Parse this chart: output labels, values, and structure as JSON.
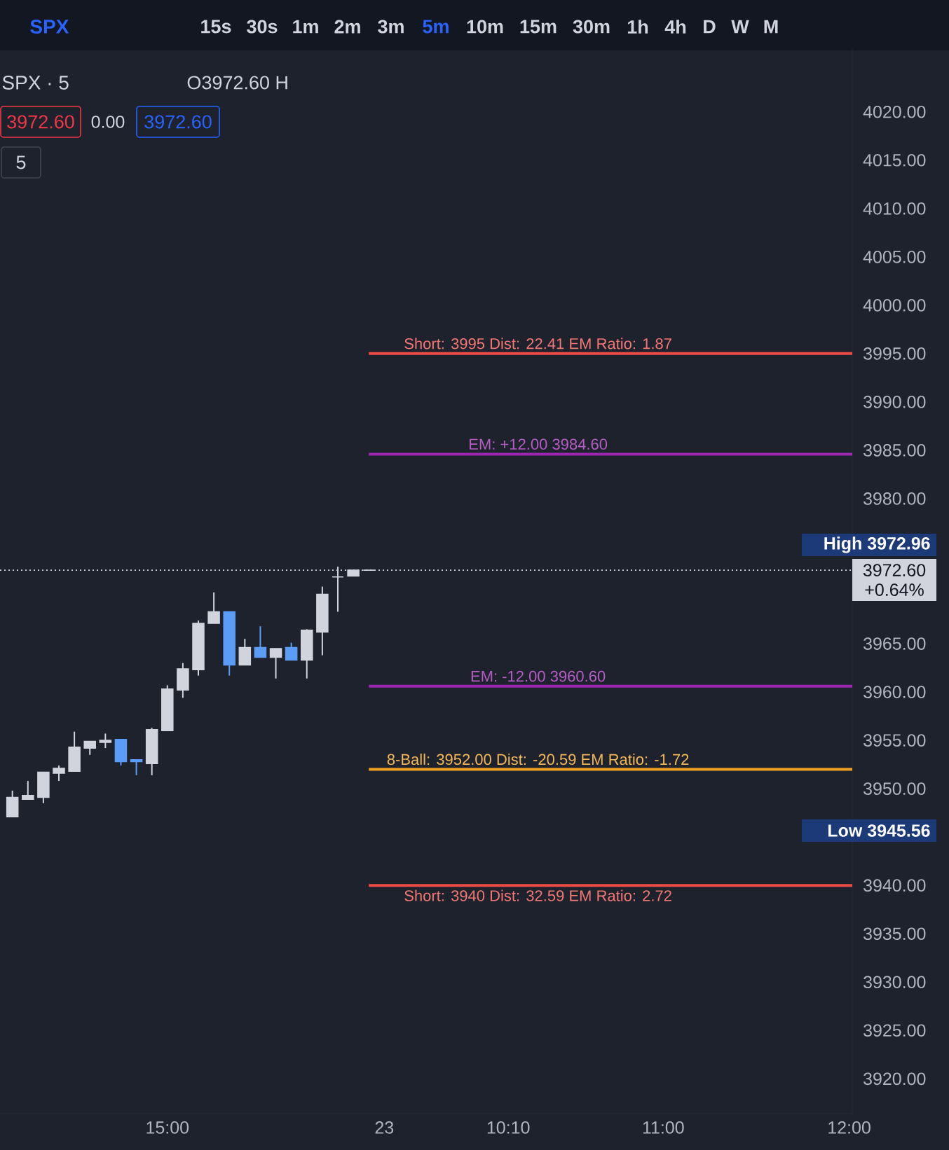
{
  "chart_data": {
    "type": "candlestick",
    "title": "SPX · 5",
    "categories": [
      null,
      null,
      null,
      null,
      null,
      null,
      null,
      null,
      null,
      null,
      "15:00",
      null,
      null,
      null,
      null,
      null,
      null,
      null,
      null,
      null,
      null,
      null,
      null,
      null,
      "23",
      null,
      null,
      null,
      null,
      null,
      null,
      null,
      "10:10",
      null,
      null,
      null,
      null,
      null,
      null,
      null,
      null,
      null,
      "11:00",
      null,
      null,
      null,
      null,
      null,
      null,
      null,
      null,
      null,
      null,
      null,
      "12:00"
    ],
    "ohlc": [
      [
        3947.1,
        3949.8,
        3947.1,
        3949.1
      ],
      [
        3948.9,
        3950.8,
        3948.9,
        3949.3
      ],
      [
        3949.1,
        3951.7,
        3948.5,
        3951.7
      ],
      [
        3951.6,
        3952.4,
        3950.8,
        3952.1
      ],
      [
        3951.8,
        3955.9,
        3951.8,
        3954.3
      ],
      [
        3954.2,
        3954.9,
        3953.5,
        3954.9
      ],
      [
        3954.8,
        3955.7,
        3954.2,
        3955.0
      ],
      [
        3955.1,
        3955.1,
        3952.4,
        3952.8
      ],
      [
        3953.0,
        3953.0,
        3951.4,
        3952.8
      ],
      [
        3952.6,
        3956.3,
        3951.4,
        3956.1
      ],
      [
        3956.0,
        3960.7,
        3956.0,
        3960.3
      ],
      [
        3960.2,
        3963.0,
        3959.4,
        3962.4
      ],
      [
        3962.3,
        3967.4,
        3961.7,
        3967.1
      ],
      [
        3967.1,
        3970.3,
        3967.1,
        3968.3
      ],
      [
        3968.3,
        3968.3,
        3961.7,
        3962.8
      ],
      [
        3962.8,
        3965.5,
        3962.8,
        3964.6
      ],
      [
        3964.6,
        3966.8,
        3963.6,
        3963.6
      ],
      [
        3963.6,
        3964.5,
        3961.4,
        3964.5
      ],
      [
        3964.6,
        3965.1,
        3963.3,
        3963.3
      ],
      [
        3963.3,
        3966.5,
        3961.4,
        3966.4
      ],
      [
        3966.2,
        3970.9,
        3963.8,
        3970.1
      ],
      [
        3971.9,
        3972.96,
        3968.3,
        3971.9
      ],
      [
        3972.0,
        3972.6,
        3972.0,
        3972.6
      ],
      [
        3972.6,
        3972.6,
        3972.6,
        3972.6
      ],
      null,
      null,
      null,
      null,
      null,
      null,
      null,
      null,
      null,
      null,
      null,
      null,
      null,
      null,
      null,
      null,
      null,
      null,
      null,
      null,
      null,
      null,
      null,
      null,
      null,
      null,
      null,
      null,
      null,
      null,
      null
    ],
    "colors": [
      "#d1d4dc",
      "#d1d4dc",
      "#d1d4dc",
      "#d1d4dc",
      "#d1d4dc",
      "#d1d4dc",
      "#d1d4dc",
      "#5b9cf6",
      "#5b9cf6",
      "#d1d4dc",
      "#d1d4dc",
      "#d1d4dc",
      "#d1d4dc",
      "#d1d4dc",
      "#5b9cf6",
      "#d1d4dc",
      "#5b9cf6",
      "#d1d4dc",
      "#5b9cf6",
      "#d1d4dc",
      "#d1d4dc",
      "#d1d4dc",
      "#d1d4dc",
      "#d1d4dc",
      null,
      null,
      null,
      null,
      null,
      null,
      null,
      null,
      null,
      null,
      null,
      null,
      null,
      null,
      null,
      null,
      null,
      null,
      null,
      null,
      null,
      null,
      null,
      null,
      null,
      null,
      null,
      null,
      null,
      null,
      null
    ],
    "ylim": [
      3916.4,
      4026.5
    ],
    "yticks": [
      {
        "value": 3920,
        "label": "3920.00"
      },
      {
        "value": 3925,
        "label": "3925.00"
      },
      {
        "value": 3930,
        "label": "3930.00"
      },
      {
        "value": 3935,
        "label": "3935.00"
      },
      {
        "value": 3940,
        "label": "3940.00"
      },
      {
        "value": 3950,
        "label": "3950.00"
      },
      {
        "value": 3955,
        "label": "3955.00"
      },
      {
        "value": 3960,
        "label": "3960.00"
      },
      {
        "value": 3965,
        "label": "3965.00"
      },
      {
        "value": 3980,
        "label": "3980.00"
      },
      {
        "value": 3985,
        "label": "3985.00"
      },
      {
        "value": 3990,
        "label": "3990.00"
      },
      {
        "value": 3995,
        "label": "3995.00"
      },
      {
        "value": 4000,
        "label": "4000.00"
      },
      {
        "value": 4005,
        "label": "4005.00"
      },
      {
        "value": 4010,
        "label": "4010.00"
      },
      {
        "value": 4015,
        "label": "4015.00"
      },
      {
        "value": 4020,
        "label": "4020.00"
      }
    ],
    "ref_lines": [
      {
        "axis": "y",
        "value": 3995,
        "label": "Short: 3995 Dist: 22.41 EM Ratio: 1.87",
        "color": "#f04a46"
      },
      {
        "axis": "y",
        "value": 3984.6,
        "label": "EM: +12.00 3984.60",
        "color": "#9c27b0"
      },
      {
        "axis": "y",
        "value": 3960.6,
        "label": "EM: -12.00 3960.60",
        "color": "#9c27b0"
      },
      {
        "axis": "y",
        "value": 3952,
        "label": "8-Ball: 3952.00 Dist: -20.59 EM Ratio: -1.72",
        "color": "#f0a020"
      },
      {
        "axis": "y",
        "value": 3940,
        "label": "Short: 3940 Dist: 32.59 EM Ratio: 2.72",
        "color": "#f04a46"
      },
      {
        "axis": "y",
        "value": 3972.6,
        "label": "3972.60",
        "color": "#d1d4dc",
        "line_style": "dotted"
      }
    ],
    "annotations": [
      "SPX",
      "15s",
      "30s",
      "1m",
      "2m",
      "3m",
      "5m",
      "10m",
      "15m",
      "30m",
      "1h",
      "4h",
      "D",
      "W",
      "M",
      "O3972.60 H",
      "3972.60",
      "0.00",
      "3972.60",
      "5",
      "+0.64%",
      "High 3972.96",
      "Low 3945.56"
    ]
  }
}
